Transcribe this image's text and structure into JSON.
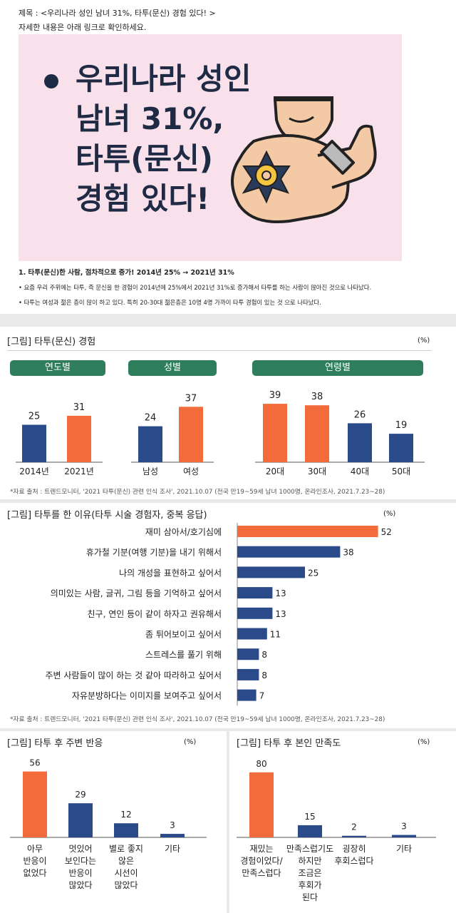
{
  "post": {
    "title": "제목 : <우리나라 성인 남녀 31%, 타투(문신) 경험 있다! >",
    "subtitle": "자세한 내용은 아래 링크로 확인하세요.",
    "banner_lines": [
      "우리나라 성인",
      "남녀 31%,",
      "타투(문신)",
      "경험 있다!"
    ],
    "point_heading": "1. 타투(문신)한 사람, 점차적으로 증가! 2014년 25% → 2021년 31%",
    "bullets": [
      "• 요즘 우리 주위에는 타투, 즉 문신을 한 경험이 2014년에 25%에서 2021년 31%로 증가해서 타투를 하는 사람이 많아진 것으로 나타났다.",
      "• 타투는 여성과 젊은 층이 많이 하고 있다. 특히 20-30대 젊은층은 10명 4명 가까이 타투 경험이 있는 것 으로 나타났다."
    ]
  },
  "colors": {
    "orange": "#f26b3a",
    "navy": "#2b4a8a",
    "green": "#2e7d5b"
  },
  "chart_data": [
    {
      "type": "bar",
      "title": "[그림] 타투(문신) 경험",
      "unit": "(%)",
      "groups": [
        {
          "label": "연도별",
          "categories": [
            "2014년",
            "2021년"
          ],
          "values": [
            25,
            31
          ],
          "colors": [
            "navy",
            "orange"
          ]
        },
        {
          "label": "성별",
          "categories": [
            "남성",
            "여성"
          ],
          "values": [
            24,
            37
          ],
          "colors": [
            "navy",
            "orange"
          ]
        },
        {
          "label": "연령별",
          "categories": [
            "20대",
            "30대",
            "40대",
            "50대"
          ],
          "values": [
            39,
            38,
            26,
            19
          ],
          "colors": [
            "orange",
            "orange",
            "navy",
            "navy"
          ]
        }
      ],
      "source": "*자료 출처 : 트렌드모니터, '2021 타투(문신) 관련 인식 조사', 2021.10.07 (전국 만19~59세 남녀 1000명, 온라인조사, 2021.7.23~28)"
    },
    {
      "type": "bar",
      "orientation": "horizontal",
      "title": "[그림] 타투를 한 이유(타투 시술 경험자, 중복 응답)",
      "unit": "(%)",
      "categories": [
        "재미 삼아서/호기심에",
        "휴가철 기분(여행 기분)을 내기 위해서",
        "나의 개성을 표현하고 싶어서",
        "의미있는 사람, 글귀, 그림 등을 기억하고 싶어서",
        "친구, 연인 등이 같이 하자고 권유해서",
        "좀 튀어보이고 싶어서",
        "스트레스를 풀기 위해",
        "주변 사람들이 많이 하는 것 같아 따라하고 싶어서",
        "자유분방하다는 이미지를 보여주고 싶어서"
      ],
      "values": [
        52,
        38,
        25,
        13,
        13,
        11,
        8,
        8,
        7
      ],
      "source": "*자료 출처 : 트렌드모니터, '2021 타투(문신) 관련 인식 조사', 2021.10.07 (전국 만19~59세 남녀 1000명, 온라인조사, 2021.7.23~28)"
    },
    {
      "type": "bar",
      "title": "[그림] 타투 후 주변 반응",
      "unit": "(%)",
      "categories": [
        [
          "아무",
          "반응이",
          "없었다"
        ],
        [
          "멋있어",
          "보인다는",
          "반응이",
          "많았다"
        ],
        [
          "별로 좋지",
          "않은",
          "시선이",
          "많았다"
        ],
        [
          "기타"
        ]
      ],
      "values": [
        56,
        29,
        12,
        3
      ]
    },
    {
      "type": "bar",
      "title": "[그림] 타투 후 본인 만족도",
      "unit": "(%)",
      "categories": [
        [
          "재밌는",
          "경험이었다/",
          "만족스럽다"
        ],
        [
          "만족스럽기도",
          "하지만",
          "조금은",
          "후회가",
          "된다"
        ],
        [
          "굉장히",
          "후회스럽다"
        ],
        [
          "기타"
        ]
      ],
      "values": [
        80,
        15,
        2,
        3
      ]
    }
  ]
}
